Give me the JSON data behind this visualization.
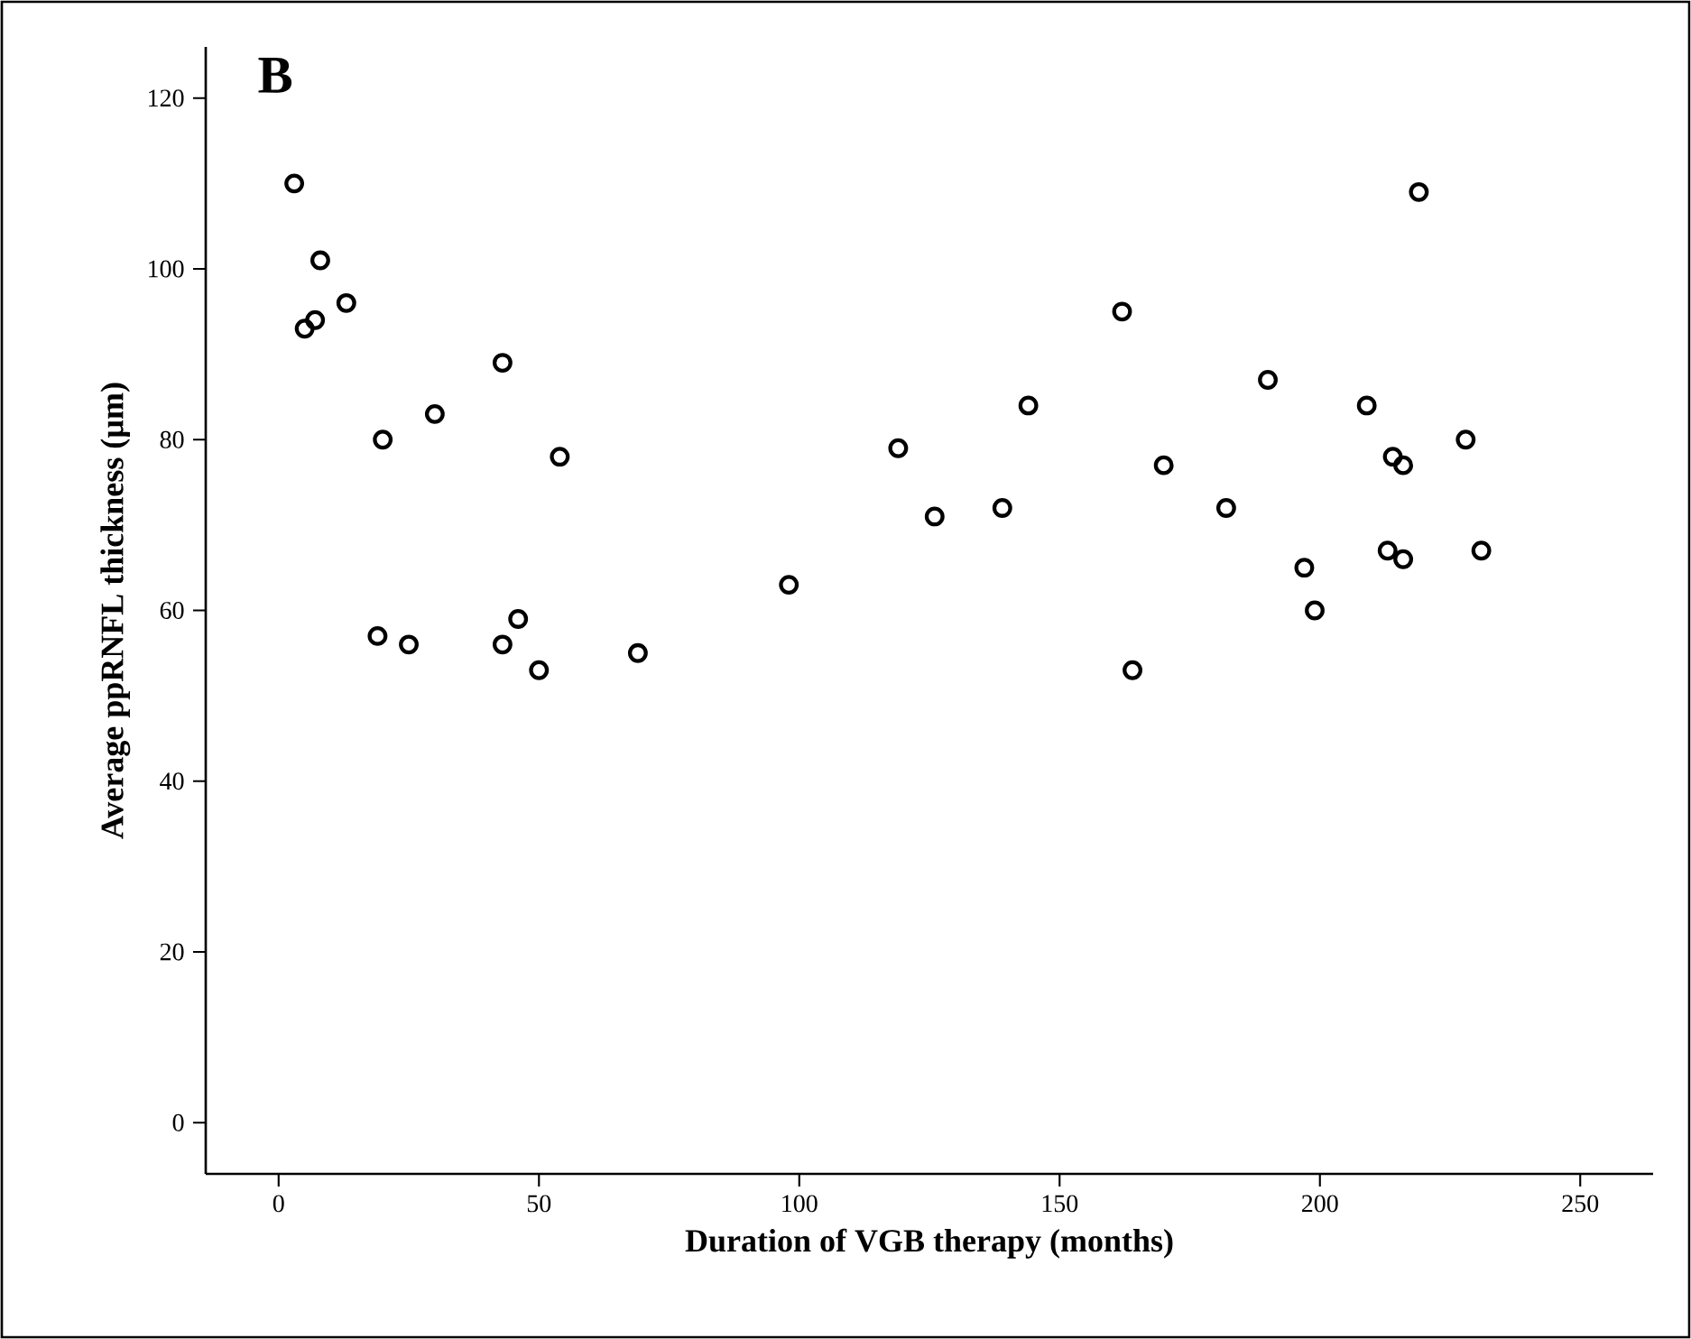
{
  "chart_data": {
    "type": "scatter",
    "title": "B",
    "xlabel": "Duration of VGB therapy (months)",
    "ylabel": "Average ppRNFL thickness (µm)",
    "x": [
      3,
      8,
      5,
      7,
      13,
      20,
      30,
      43,
      54,
      19,
      25,
      43,
      46,
      50,
      69,
      98,
      119,
      126,
      139,
      144,
      162,
      164,
      170,
      182,
      190,
      197,
      199,
      209,
      214,
      216,
      213,
      216,
      219,
      228,
      231
    ],
    "values": [
      110,
      101,
      93,
      94,
      96,
      80,
      83,
      89,
      78,
      57,
      56,
      56,
      59,
      53,
      55,
      63,
      79,
      71,
      72,
      84,
      95,
      53,
      77,
      72,
      87,
      65,
      60,
      84,
      78,
      77,
      67,
      66,
      109,
      80,
      67
    ],
    "color": "#000000",
    "marker": "circle",
    "xlim": [
      -14,
      264
    ],
    "ylim": [
      -6,
      126
    ],
    "xticks": [
      0,
      50,
      100,
      150,
      200,
      250
    ],
    "yticks": [
      0,
      20,
      40,
      60,
      80,
      100,
      120
    ]
  }
}
